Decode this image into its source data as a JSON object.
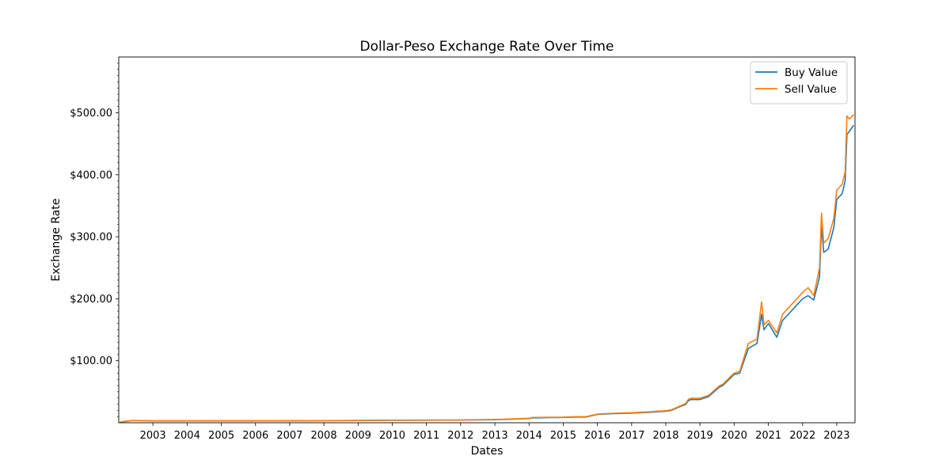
{
  "chart_data": {
    "type": "line",
    "title": "Dollar-Peso Exchange Rate Over Time",
    "xlabel": "Dates",
    "ylabel": "Exchange Rate",
    "xlim": [
      "2002-01-01",
      "2023-07-15"
    ],
    "ylim": [
      0,
      590
    ],
    "x_ticks": [
      "2003",
      "2004",
      "2005",
      "2006",
      "2007",
      "2008",
      "2009",
      "2010",
      "2011",
      "2012",
      "2013",
      "2014",
      "2015",
      "2016",
      "2017",
      "2018",
      "2019",
      "2020",
      "2021",
      "2022",
      "2023"
    ],
    "y_ticks": [
      {
        "value": 100,
        "label": "$100.00"
      },
      {
        "value": 200,
        "label": "$200.00"
      },
      {
        "value": 300,
        "label": "$300.00"
      },
      {
        "value": 400,
        "label": "$400.00"
      },
      {
        "value": 500,
        "label": "$500.00"
      }
    ],
    "grid": false,
    "legend_position": "top-right",
    "x": [
      "2002-01-15",
      "2002-04-01",
      "2002-06-01",
      "2003-01-01",
      "2004-01-01",
      "2006-01-01",
      "2008-01-01",
      "2010-01-01",
      "2011-01-01",
      "2012-01-01",
      "2012-06-01",
      "2013-01-01",
      "2013-06-01",
      "2014-01-01",
      "2014-02-01",
      "2014-09-01",
      "2015-01-01",
      "2015-06-01",
      "2015-09-01",
      "2016-01-01",
      "2016-06-01",
      "2017-01-01",
      "2017-06-01",
      "2018-01-01",
      "2018-03-01",
      "2018-06-01",
      "2018-08-01",
      "2018-09-01",
      "2018-10-01",
      "2019-01-01",
      "2019-04-01",
      "2019-08-01",
      "2019-09-01",
      "2020-01-01",
      "2020-03-01",
      "2020-06-01",
      "2020-09-01",
      "2020-10-20",
      "2020-11-15",
      "2021-01-01",
      "2021-04-01",
      "2021-06-01",
      "2021-09-01",
      "2022-01-01",
      "2022-03-01",
      "2022-05-01",
      "2022-07-01",
      "2022-07-22",
      "2022-08-15",
      "2022-10-01",
      "2022-12-01",
      "2023-01-01",
      "2023-03-01",
      "2023-04-01",
      "2023-04-20",
      "2023-05-15",
      "2023-07-01"
    ],
    "series": [
      {
        "name": "Buy Value",
        "color": "#1f77b4",
        "values": [
          1.0,
          2.5,
          3.5,
          2.9,
          2.9,
          3.0,
          3.2,
          3.9,
          4.1,
          4.3,
          4.6,
          4.9,
          5.5,
          6.8,
          7.8,
          8.3,
          8.5,
          9.2,
          9.2,
          13.4,
          14.6,
          15.5,
          16.5,
          18.5,
          19.9,
          26.0,
          29.5,
          36.0,
          37.5,
          37.5,
          42.0,
          58.0,
          60.0,
          78.0,
          80.0,
          120.0,
          128.0,
          175.0,
          150.0,
          160.0,
          138.0,
          165.0,
          180.0,
          200.0,
          205.0,
          198.0,
          235.0,
          318.0,
          275.0,
          280.0,
          315.0,
          360.0,
          370.0,
          390.0,
          465.0,
          470.0,
          480.0
        ]
      },
      {
        "name": "Sell Value",
        "color": "#ff7f0e",
        "values": [
          1.2,
          2.8,
          3.8,
          3.2,
          3.2,
          3.3,
          3.5,
          4.2,
          4.4,
          4.6,
          4.9,
          5.3,
          6.0,
          7.2,
          8.5,
          8.8,
          9.0,
          9.8,
          9.8,
          14.0,
          15.2,
          16.2,
          17.3,
          19.4,
          20.8,
          27.0,
          31.0,
          38.0,
          39.5,
          39.5,
          44.0,
          60.0,
          62.0,
          80.0,
          83.0,
          128.0,
          135.0,
          195.0,
          158.0,
          165.0,
          145.0,
          175.0,
          190.0,
          210.0,
          218.0,
          205.0,
          250.0,
          338.0,
          290.0,
          297.0,
          330.0,
          375.0,
          385.0,
          405.0,
          495.0,
          490.0,
          497.0
        ]
      }
    ]
  }
}
